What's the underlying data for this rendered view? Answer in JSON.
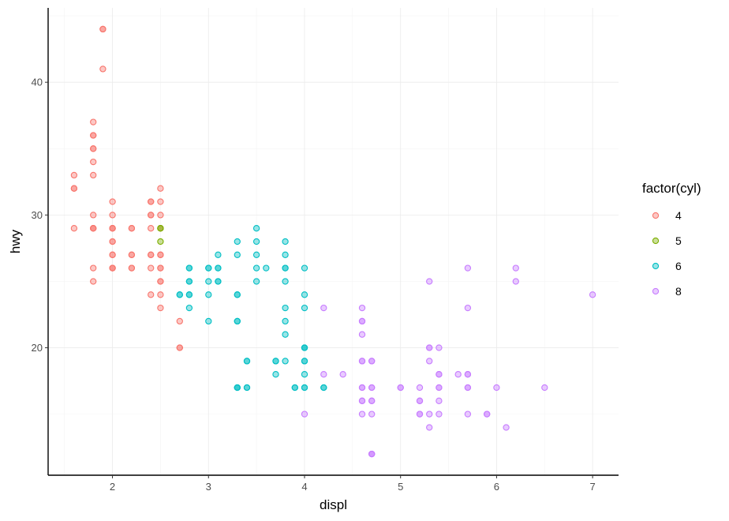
{
  "chart_data": {
    "type": "scatter",
    "title": "",
    "xlabel": "displ",
    "ylabel": "hwy",
    "xlim": [
      1.33,
      7.27
    ],
    "ylim": [
      10.4,
      45.6
    ],
    "x_ticks": [
      2,
      3,
      4,
      5,
      6,
      7
    ],
    "x_tick_labels": [
      "2",
      "3",
      "4",
      "5",
      "6",
      "7"
    ],
    "y_ticks": [
      20,
      30,
      40
    ],
    "y_tick_labels": [
      "20",
      "30",
      "40"
    ],
    "grid": true,
    "legend_position": "right",
    "legend_title": "factor(cyl)",
    "series": [
      {
        "name": "4",
        "color": "#F8766D",
        "points": [
          [
            1.6,
            33
          ],
          [
            1.6,
            32
          ],
          [
            1.6,
            32
          ],
          [
            1.6,
            29
          ],
          [
            1.8,
            37
          ],
          [
            1.8,
            36
          ],
          [
            1.8,
            36
          ],
          [
            1.8,
            35
          ],
          [
            1.8,
            35
          ],
          [
            1.8,
            34
          ],
          [
            1.8,
            33
          ],
          [
            1.8,
            30
          ],
          [
            1.8,
            29
          ],
          [
            1.8,
            29
          ],
          [
            1.8,
            29
          ],
          [
            1.8,
            26
          ],
          [
            1.8,
            25
          ],
          [
            1.9,
            44
          ],
          [
            1.9,
            44
          ],
          [
            1.9,
            41
          ],
          [
            2.0,
            31
          ],
          [
            2.0,
            30
          ],
          [
            2.0,
            29
          ],
          [
            2.0,
            29
          ],
          [
            2.0,
            29
          ],
          [
            2.0,
            28
          ],
          [
            2.0,
            28
          ],
          [
            2.0,
            27
          ],
          [
            2.0,
            27
          ],
          [
            2.0,
            26
          ],
          [
            2.0,
            26
          ],
          [
            2.0,
            26
          ],
          [
            2.2,
            29
          ],
          [
            2.2,
            29
          ],
          [
            2.2,
            27
          ],
          [
            2.2,
            27
          ],
          [
            2.2,
            26
          ],
          [
            2.2,
            26
          ],
          [
            2.4,
            31
          ],
          [
            2.4,
            31
          ],
          [
            2.4,
            30
          ],
          [
            2.4,
            30
          ],
          [
            2.4,
            29
          ],
          [
            2.4,
            27
          ],
          [
            2.4,
            27
          ],
          [
            2.4,
            26
          ],
          [
            2.4,
            24
          ],
          [
            2.5,
            32
          ],
          [
            2.5,
            31
          ],
          [
            2.5,
            30
          ],
          [
            2.5,
            29
          ],
          [
            2.5,
            27
          ],
          [
            2.5,
            27
          ],
          [
            2.5,
            26
          ],
          [
            2.5,
            26
          ],
          [
            2.5,
            25
          ],
          [
            2.5,
            25
          ],
          [
            2.5,
            24
          ],
          [
            2.5,
            23
          ],
          [
            2.7,
            22
          ],
          [
            2.7,
            20
          ],
          [
            2.7,
            20
          ]
        ]
      },
      {
        "name": "5",
        "color": "#7CAE00",
        "points": [
          [
            2.5,
            29
          ],
          [
            2.5,
            29
          ],
          [
            2.5,
            28
          ]
        ]
      },
      {
        "name": "6",
        "color": "#00BFC4",
        "points": [
          [
            2.7,
            24
          ],
          [
            2.7,
            24
          ],
          [
            2.8,
            26
          ],
          [
            2.8,
            26
          ],
          [
            2.8,
            25
          ],
          [
            2.8,
            25
          ],
          [
            2.8,
            24
          ],
          [
            2.8,
            24
          ],
          [
            2.8,
            23
          ],
          [
            3.0,
            26
          ],
          [
            3.0,
            26
          ],
          [
            3.0,
            25
          ],
          [
            3.0,
            24
          ],
          [
            3.0,
            22
          ],
          [
            3.1,
            27
          ],
          [
            3.1,
            26
          ],
          [
            3.1,
            26
          ],
          [
            3.1,
            25
          ],
          [
            3.1,
            25
          ],
          [
            3.3,
            28
          ],
          [
            3.3,
            27
          ],
          [
            3.3,
            24
          ],
          [
            3.3,
            24
          ],
          [
            3.3,
            22
          ],
          [
            3.3,
            22
          ],
          [
            3.3,
            17
          ],
          [
            3.3,
            17
          ],
          [
            3.3,
            17
          ],
          [
            3.4,
            19
          ],
          [
            3.4,
            19
          ],
          [
            3.4,
            17
          ],
          [
            3.4,
            17
          ],
          [
            3.5,
            29
          ],
          [
            3.5,
            28
          ],
          [
            3.5,
            27
          ],
          [
            3.5,
            26
          ],
          [
            3.5,
            25
          ],
          [
            3.6,
            26
          ],
          [
            3.7,
            19
          ],
          [
            3.7,
            19
          ],
          [
            3.7,
            18
          ],
          [
            3.8,
            28
          ],
          [
            3.8,
            27
          ],
          [
            3.8,
            26
          ],
          [
            3.8,
            26
          ],
          [
            3.8,
            25
          ],
          [
            3.8,
            23
          ],
          [
            3.8,
            22
          ],
          [
            3.8,
            21
          ],
          [
            3.8,
            19
          ],
          [
            3.9,
            17
          ],
          [
            3.9,
            17
          ],
          [
            4.0,
            26
          ],
          [
            4.0,
            24
          ],
          [
            4.0,
            23
          ],
          [
            4.0,
            20
          ],
          [
            4.0,
            20
          ],
          [
            4.0,
            20
          ],
          [
            4.0,
            19
          ],
          [
            4.0,
            19
          ],
          [
            4.0,
            18
          ],
          [
            4.0,
            17
          ],
          [
            4.0,
            17
          ],
          [
            4.2,
            17
          ],
          [
            4.2,
            17
          ]
        ]
      },
      {
        "name": "8",
        "color": "#C77CFF",
        "points": [
          [
            4.0,
            15
          ],
          [
            4.2,
            23
          ],
          [
            4.2,
            18
          ],
          [
            4.4,
            18
          ],
          [
            4.6,
            23
          ],
          [
            4.6,
            22
          ],
          [
            4.6,
            22
          ],
          [
            4.6,
            21
          ],
          [
            4.6,
            19
          ],
          [
            4.6,
            19
          ],
          [
            4.6,
            17
          ],
          [
            4.6,
            17
          ],
          [
            4.6,
            16
          ],
          [
            4.6,
            16
          ],
          [
            4.6,
            15
          ],
          [
            4.7,
            19
          ],
          [
            4.7,
            19
          ],
          [
            4.7,
            17
          ],
          [
            4.7,
            17
          ],
          [
            4.7,
            16
          ],
          [
            4.7,
            16
          ],
          [
            4.7,
            15
          ],
          [
            4.7,
            12
          ],
          [
            4.7,
            12
          ],
          [
            4.7,
            12
          ],
          [
            5.0,
            17
          ],
          [
            5.0,
            17
          ],
          [
            5.2,
            17
          ],
          [
            5.2,
            16
          ],
          [
            5.2,
            16
          ],
          [
            5.2,
            15
          ],
          [
            5.2,
            15
          ],
          [
            5.3,
            25
          ],
          [
            5.3,
            20
          ],
          [
            5.3,
            20
          ],
          [
            5.3,
            19
          ],
          [
            5.3,
            15
          ],
          [
            5.3,
            14
          ],
          [
            5.4,
            20
          ],
          [
            5.4,
            18
          ],
          [
            5.4,
            18
          ],
          [
            5.4,
            17
          ],
          [
            5.4,
            17
          ],
          [
            5.4,
            16
          ],
          [
            5.4,
            15
          ],
          [
            5.6,
            18
          ],
          [
            5.7,
            26
          ],
          [
            5.7,
            23
          ],
          [
            5.7,
            18
          ],
          [
            5.7,
            18
          ],
          [
            5.7,
            17
          ],
          [
            5.7,
            17
          ],
          [
            5.7,
            15
          ],
          [
            5.9,
            15
          ],
          [
            5.9,
            15
          ],
          [
            6.0,
            17
          ],
          [
            6.1,
            14
          ],
          [
            6.2,
            26
          ],
          [
            6.2,
            25
          ],
          [
            6.5,
            17
          ],
          [
            7.0,
            24
          ]
        ]
      }
    ]
  }
}
